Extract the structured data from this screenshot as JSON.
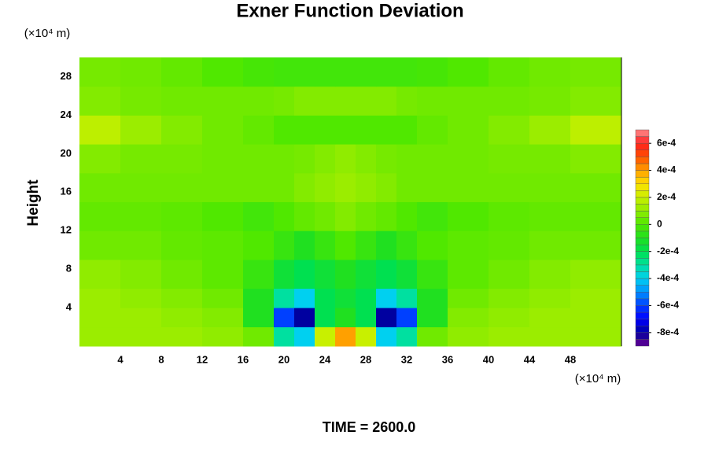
{
  "chart_data": {
    "type": "contour",
    "title": "Exner Function Deviation",
    "y_label": "Height",
    "y_unit": "(×10⁴ m)",
    "x_unit": "(×10⁴ m)",
    "time_label": "TIME = 2600.0",
    "xlim": [
      0,
      53
    ],
    "ylim": [
      0,
      30
    ],
    "xticks": [
      4,
      8,
      12,
      16,
      20,
      24,
      28,
      32,
      36,
      40,
      44,
      48
    ],
    "yticks": [
      4,
      8,
      12,
      16,
      20,
      24,
      28
    ],
    "x_edges": [
      0,
      4,
      8,
      12,
      16,
      19,
      21,
      23,
      25,
      27,
      29,
      31,
      33,
      36,
      40,
      44,
      48,
      53
    ],
    "y_edges": [
      0,
      2,
      4,
      6,
      9,
      12,
      15,
      18,
      21,
      24,
      27,
      30
    ],
    "z": [
      [
        0.00012,
        0.00012,
        0.00012,
        0.0001,
        5e-05,
        -0.0003,
        -0.0004,
        0.0002,
        0.0004,
        0.0002,
        -0.0004,
        -0.0003,
        5e-05,
        0.0001,
        0.00012,
        0.00012,
        0.00012
      ],
      [
        0.00012,
        0.00012,
        0.0001,
        8e-05,
        -0.0001,
        -0.0006,
        -0.0008,
        -0.0002,
        -0.0001,
        -0.0002,
        -0.0008,
        -0.0006,
        -0.0001,
        8e-05,
        0.0001,
        0.00012,
        0.00012
      ],
      [
        0.00012,
        0.0001,
        8e-05,
        5e-05,
        -0.0001,
        -0.0003,
        -0.0004,
        -0.0002,
        -0.00015,
        -0.0002,
        -0.0004,
        -0.0003,
        -0.0001,
        5e-05,
        8e-05,
        0.0001,
        0.00012
      ],
      [
        0.0001,
        8e-05,
        5e-05,
        2e-05,
        -5e-05,
        -0.00015,
        -0.0002,
        -0.00015,
        -0.0001,
        -0.00015,
        -0.0002,
        -0.00015,
        -5e-05,
        2e-05,
        5e-05,
        8e-05,
        0.0001
      ],
      [
        5e-05,
        5e-05,
        3e-05,
        2e-05,
        0,
        -5e-05,
        -0.0001,
        -5e-05,
        0,
        -5e-05,
        -0.0001,
        -5e-05,
        0,
        2e-05,
        3e-05,
        5e-05,
        5e-05
      ],
      [
        3e-05,
        3e-05,
        2e-05,
        0,
        -3e-05,
        0,
        3e-05,
        5e-05,
        8e-05,
        5e-05,
        3e-05,
        0,
        -3e-05,
        0,
        2e-05,
        3e-05,
        3e-05
      ],
      [
        5e-05,
        5e-05,
        5e-05,
        5e-05,
        5e-05,
        5e-05,
        8e-05,
        0.0001,
        0.00012,
        0.0001,
        8e-05,
        5e-05,
        5e-05,
        5e-05,
        5e-05,
        5e-05,
        5e-05
      ],
      [
        8e-05,
        6e-05,
        6e-05,
        5e-05,
        5e-05,
        5e-05,
        6e-05,
        8e-05,
        0.0001,
        8e-05,
        6e-05,
        5e-05,
        5e-05,
        5e-05,
        6e-05,
        6e-05,
        8e-05
      ],
      [
        0.00018,
        0.00012,
        8e-05,
        5e-05,
        3e-05,
        0,
        0,
        0,
        0,
        0,
        0,
        0,
        3e-05,
        5e-05,
        8e-05,
        0.00012,
        0.00018
      ],
      [
        8e-05,
        6e-05,
        5e-05,
        5e-05,
        5e-05,
        6e-05,
        8e-05,
        8e-05,
        8e-05,
        8e-05,
        8e-05,
        6e-05,
        5e-05,
        5e-05,
        5e-05,
        6e-05,
        8e-05
      ],
      [
        6e-05,
        5e-05,
        3e-05,
        0,
        -2e-05,
        -3e-05,
        -3e-05,
        -3e-05,
        -3e-05,
        -3e-05,
        -3e-05,
        -3e-05,
        -2e-05,
        0,
        3e-05,
        5e-05,
        6e-05
      ]
    ],
    "clim": [
      -0.0009,
      0.0007
    ],
    "cticks": [
      {
        "value": -0.0008,
        "label": "-8e-4"
      },
      {
        "value": -0.0006,
        "label": "-6e-4"
      },
      {
        "value": -0.0004,
        "label": "-4e-4"
      },
      {
        "value": -0.0002,
        "label": "-2e-4"
      },
      0,
      {
        "value": 0.0002,
        "label": "2e-4"
      },
      {
        "value": 0.0004,
        "label": "4e-4"
      },
      {
        "value": 0.0006,
        "label": "6e-4"
      }
    ],
    "colormap": [
      "#6a0090",
      "#0000a0",
      "#0000ff",
      "#0040ff",
      "#0090ff",
      "#00d0f0",
      "#00e0a0",
      "#00e050",
      "#20e020",
      "#50e800",
      "#90ec00",
      "#c8f000",
      "#ffe000",
      "#ffa000",
      "#ff5000",
      "#ff2020",
      "#ff9090"
    ]
  }
}
